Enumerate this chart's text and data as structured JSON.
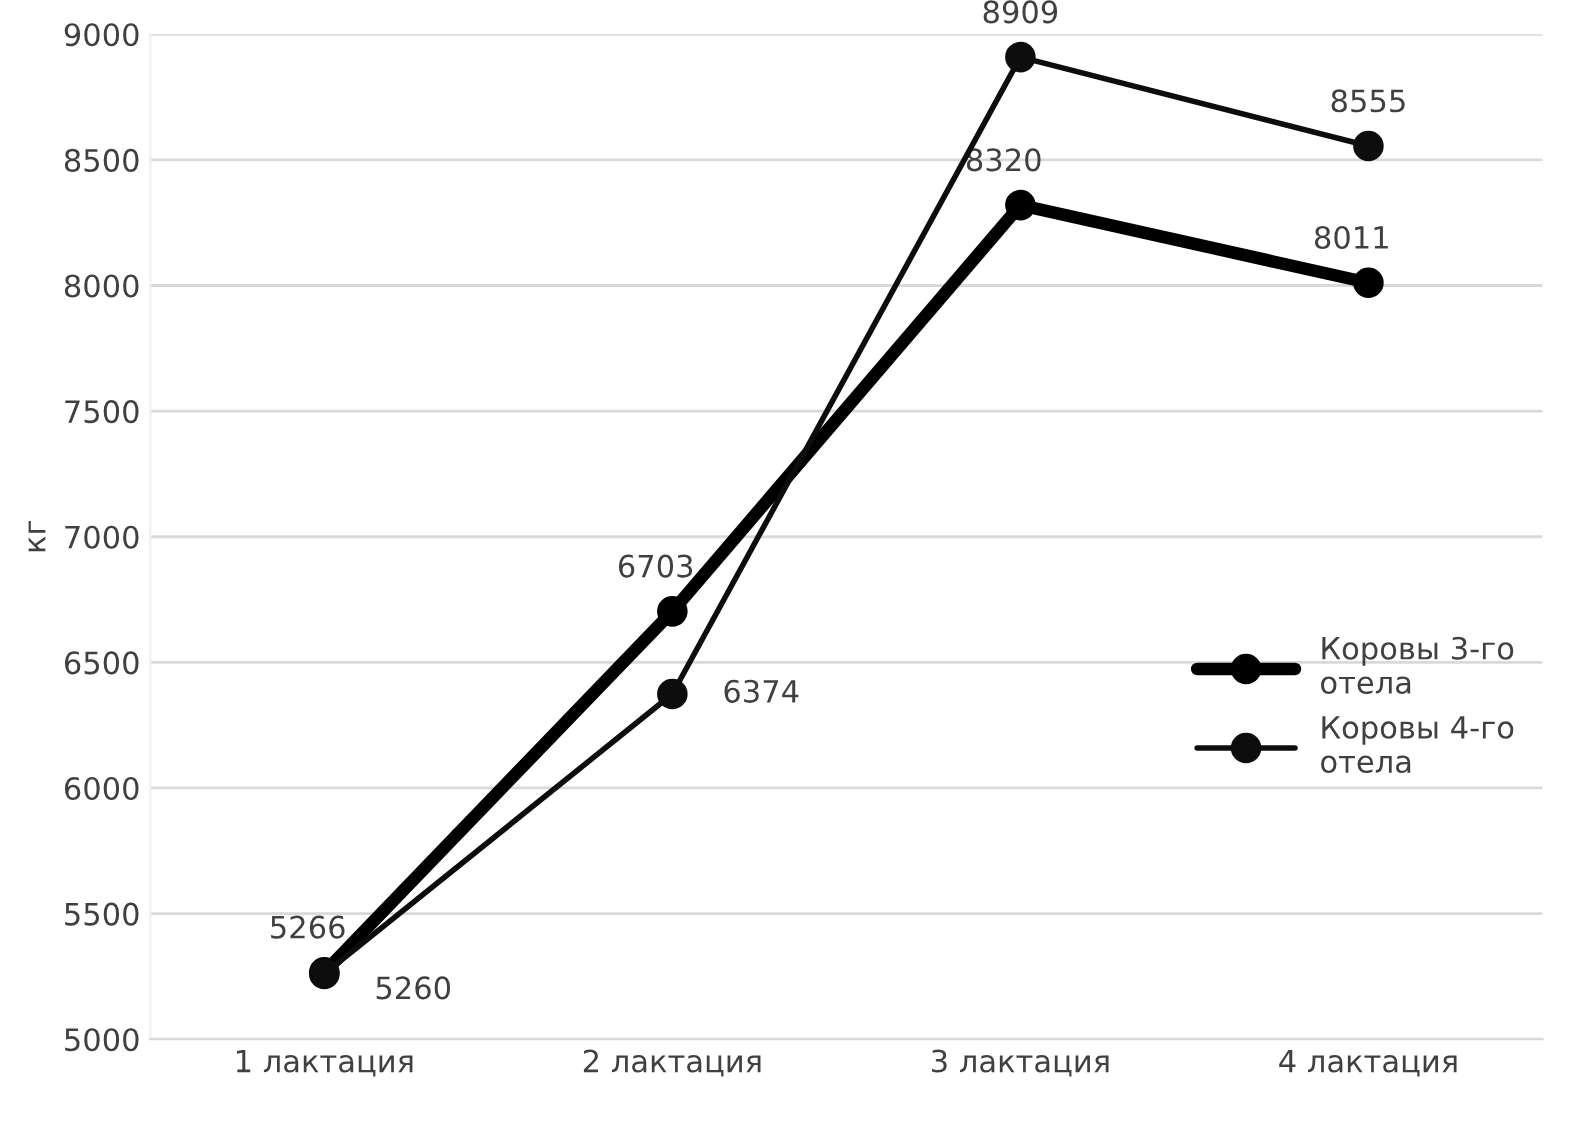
{
  "chart_data": {
    "type": "line",
    "ylabel": "кг",
    "categories": [
      "1 лактация",
      "2 лактация",
      "3 лактация",
      "4 лактация"
    ],
    "series": [
      {
        "name": "Коровы 3-го отела",
        "color": "#000000",
        "values": [
          5266,
          6703,
          8320,
          8011
        ]
      },
      {
        "name": "Коровы 4-го отела",
        "color": "#0d0d0d",
        "values": [
          5260,
          6374,
          8909,
          8555
        ]
      }
    ],
    "ylim": [
      5000,
      9000
    ],
    "yticks": [
      5000,
      5500,
      6000,
      6500,
      7000,
      7500,
      8000,
      8500,
      9000
    ],
    "grid": "y",
    "legend": "right",
    "marker": "circle",
    "line_style": "solid",
    "data_labels": true
  }
}
